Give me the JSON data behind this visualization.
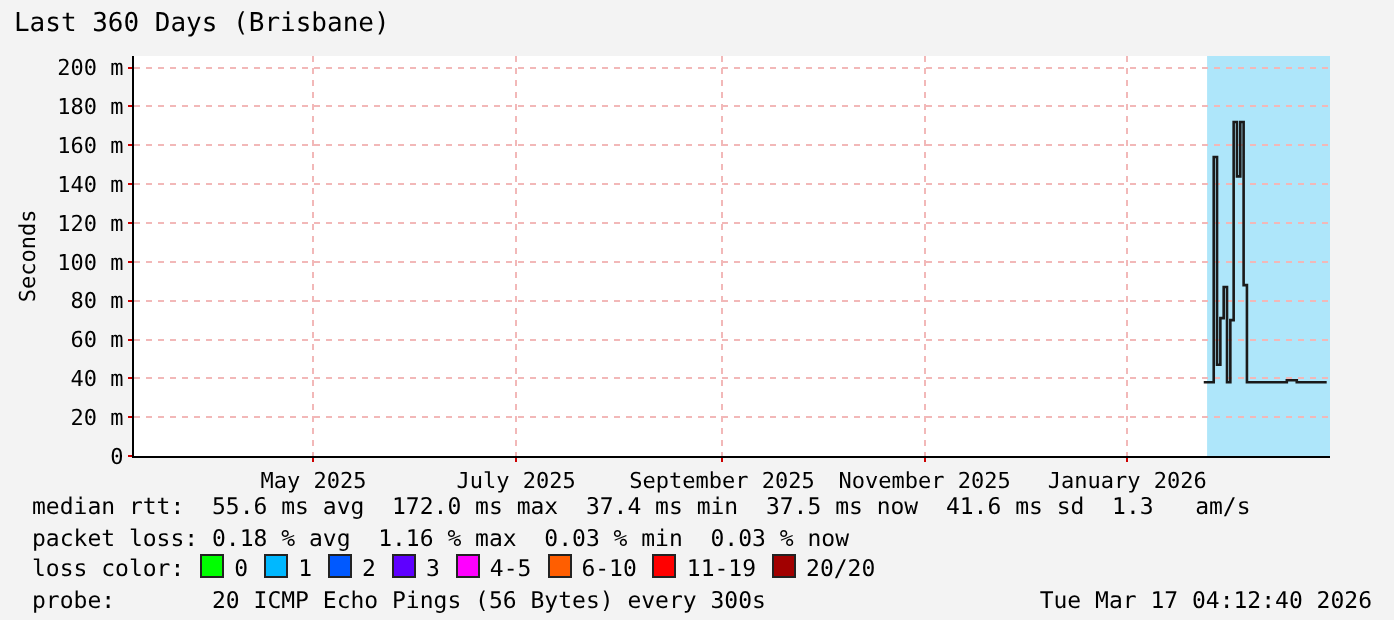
{
  "chart_data": {
    "type": "step",
    "title": "Last 360 Days (Brisbane)",
    "ylabel": "Seconds",
    "x": [
      "2026-02-07",
      "2026-02-10",
      "2026-02-11",
      "2026-02-12",
      "2026-02-13",
      "2026-02-14",
      "2026-02-15",
      "2026-02-16",
      "2026-02-17",
      "2026-02-18",
      "2026-02-19",
      "2026-02-20",
      "2026-03-04",
      "2026-03-07",
      "2026-03-16"
    ],
    "series": [
      {
        "color": "#1a1a1a",
        "values": [
          38,
          154,
          47,
          71,
          87,
          38,
          70,
          172,
          144,
          172,
          88,
          38,
          39,
          38,
          38
        ]
      }
    ],
    "xlim": [
      "2025-03-22",
      "2026-03-17"
    ],
    "xticks": [
      {
        "value": "2025-05-15",
        "label": "May 2025"
      },
      {
        "value": "2025-07-15",
        "label": "July 2025"
      },
      {
        "value": "2025-09-15",
        "label": "September 2025"
      },
      {
        "value": "2025-11-15",
        "label": "November 2025"
      },
      {
        "value": "2026-01-15",
        "label": "January 2026"
      }
    ],
    "ylim": [
      0,
      206
    ],
    "yticks": [
      0,
      {
        "value": 20,
        "label": "20 m"
      },
      {
        "value": 40,
        "label": "40 m"
      },
      {
        "value": 60,
        "label": "60 m"
      },
      {
        "value": 80,
        "label": "80 m"
      },
      {
        "value": 100,
        "label": "100 m"
      },
      {
        "value": 120,
        "label": "120 m"
      },
      {
        "value": 140,
        "label": "140 m"
      },
      {
        "value": 160,
        "label": "160 m"
      },
      {
        "value": 180,
        "label": "180 m"
      },
      {
        "value": 200,
        "label": "200 m"
      }
    ],
    "bands": [
      {
        "axis": "x",
        "from": "2026-02-08",
        "to": "2026-03-17",
        "color": "#aee6fa"
      }
    ],
    "grid": true,
    "annotations": [
      "median rtt:  55.6 ms avg  172.0 ms max  37.4 ms min  37.5 ms now  41.6 ms sd  1.3   am/s",
      "packet loss: 0.18 % avg  1.16 % max  0.03 % min  0.03 % now",
      "loss color:",
      "0",
      "1",
      "2",
      "3",
      "4-5",
      "6-10",
      "11-19",
      "20/20",
      "probe:       20 ICMP Echo Pings (56 Bytes) every 300s",
      "Tue Mar 17 04:12:40 2026"
    ]
  }
}
